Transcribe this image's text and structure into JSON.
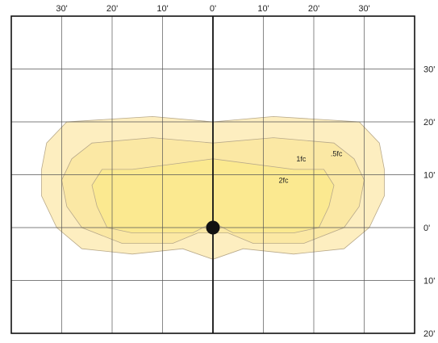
{
  "chart_data": {
    "type": "isofootcandle",
    "x_ticks": [
      {
        "label": "30'",
        "value": -30
      },
      {
        "label": "20'",
        "value": -20
      },
      {
        "label": "10'",
        "value": -10
      },
      {
        "label": "0'",
        "value": 0
      },
      {
        "label": "10'",
        "value": 10
      },
      {
        "label": "20'",
        "value": 20
      },
      {
        "label": "30'",
        "value": 30
      }
    ],
    "y_ticks": [
      {
        "label": "30'",
        "value": 30
      },
      {
        "label": "20'",
        "value": 20
      },
      {
        "label": "10'",
        "value": 10
      },
      {
        "label": "0'",
        "value": 0
      },
      {
        "label": "10'",
        "value": -10
      },
      {
        "label": "20'",
        "value": -20
      }
    ],
    "xlim": [
      -40,
      40
    ],
    "ylim": [
      -20,
      40
    ],
    "grid": true,
    "fixture": {
      "x": 0,
      "y": 0
    },
    "contours": [
      {
        "label": ".5fc",
        "color": "#fdeec0",
        "points": [
          [
            -29,
            20
          ],
          [
            -12,
            21
          ],
          [
            0,
            20
          ],
          [
            12,
            21
          ],
          [
            29,
            20
          ],
          [
            33,
            16
          ],
          [
            34,
            11
          ],
          [
            34,
            6
          ],
          [
            31,
            0
          ],
          [
            26,
            -4
          ],
          [
            16,
            -5
          ],
          [
            6,
            -4
          ],
          [
            0,
            -6
          ],
          [
            -6,
            -4
          ],
          [
            -16,
            -5
          ],
          [
            -26,
            -4
          ],
          [
            -31,
            0
          ],
          [
            -34,
            6
          ],
          [
            -34,
            11
          ],
          [
            -33,
            16
          ]
        ]
      },
      {
        "label": "1fc",
        "color": "#fbe8a4",
        "points": [
          [
            -24,
            16
          ],
          [
            -12,
            17
          ],
          [
            0,
            16
          ],
          [
            12,
            17
          ],
          [
            24,
            16
          ],
          [
            28,
            13
          ],
          [
            30,
            9
          ],
          [
            29,
            4
          ],
          [
            26,
            0
          ],
          [
            18,
            -3
          ],
          [
            8,
            -3
          ],
          [
            3,
            -1
          ],
          [
            0,
            -1
          ],
          [
            -3,
            -1
          ],
          [
            -8,
            -3
          ],
          [
            -18,
            -3
          ],
          [
            -26,
            0
          ],
          [
            -29,
            4
          ],
          [
            -30,
            9
          ],
          [
            -28,
            13
          ]
        ]
      },
      {
        "label": "2fc",
        "color": "#fbe990",
        "points": [
          [
            -16,
            11
          ],
          [
            0,
            13
          ],
          [
            16,
            11
          ],
          [
            22,
            11
          ],
          [
            24,
            8
          ],
          [
            23,
            4
          ],
          [
            21,
            0
          ],
          [
            16,
            -1
          ],
          [
            4,
            -1
          ],
          [
            0,
            1
          ],
          [
            -4,
            -1
          ],
          [
            -16,
            -1
          ],
          [
            -21,
            0
          ],
          [
            -23,
            4
          ],
          [
            -24,
            8
          ],
          [
            -22,
            11
          ]
        ]
      }
    ],
    "contour_labels": [
      {
        "text": ".5fc",
        "x": 24.5,
        "y": 13.5
      },
      {
        "text": "1fc",
        "x": 17.5,
        "y": 12.5
      },
      {
        "text": "2fc",
        "x": 14,
        "y": 8.5
      }
    ]
  }
}
